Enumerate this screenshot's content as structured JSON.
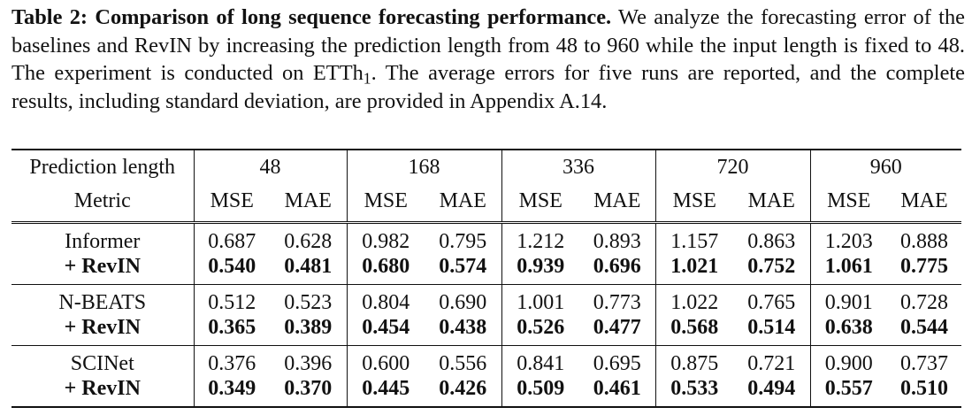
{
  "caption": {
    "label": "Table 2:",
    "title": "Comparison of long sequence forecasting performance.",
    "text_1": "We analyze the forecasting error of the baselines and RevIN by increasing the prediction length from 48 to 960 while the input length is fixed to 48. The experiment is conducted on ETTh",
    "subscript": "1",
    "text_2": ". The average errors for five runs are reported, and the complete results, including standard deviation, are provided in Appendix A.14."
  },
  "table": {
    "header_row1_label": "Prediction length",
    "header_row2_label": "Metric",
    "prediction_lengths": [
      "48",
      "168",
      "336",
      "720",
      "960"
    ],
    "metrics": [
      "MSE",
      "MAE"
    ],
    "groups": [
      {
        "baseline": {
          "name": "Informer",
          "values": [
            "0.687",
            "0.628",
            "0.982",
            "0.795",
            "1.212",
            "0.893",
            "1.157",
            "0.863",
            "1.203",
            "0.888"
          ]
        },
        "revin": {
          "name": "+ RevIN",
          "values": [
            "0.540",
            "0.481",
            "0.680",
            "0.574",
            "0.939",
            "0.696",
            "1.021",
            "0.752",
            "1.061",
            "0.775"
          ]
        }
      },
      {
        "baseline": {
          "name": "N-BEATS",
          "values": [
            "0.512",
            "0.523",
            "0.804",
            "0.690",
            "1.001",
            "0.773",
            "1.022",
            "0.765",
            "0.901",
            "0.728"
          ]
        },
        "revin": {
          "name": "+ RevIN",
          "values": [
            "0.365",
            "0.389",
            "0.454",
            "0.438",
            "0.526",
            "0.477",
            "0.568",
            "0.514",
            "0.638",
            "0.544"
          ]
        }
      },
      {
        "baseline": {
          "name": "SCINet",
          "values": [
            "0.376",
            "0.396",
            "0.600",
            "0.556",
            "0.841",
            "0.695",
            "0.875",
            "0.721",
            "0.900",
            "0.737"
          ]
        },
        "revin": {
          "name": "+ RevIN",
          "values": [
            "0.349",
            "0.370",
            "0.445",
            "0.426",
            "0.509",
            "0.461",
            "0.533",
            "0.494",
            "0.557",
            "0.510"
          ]
        }
      }
    ]
  }
}
